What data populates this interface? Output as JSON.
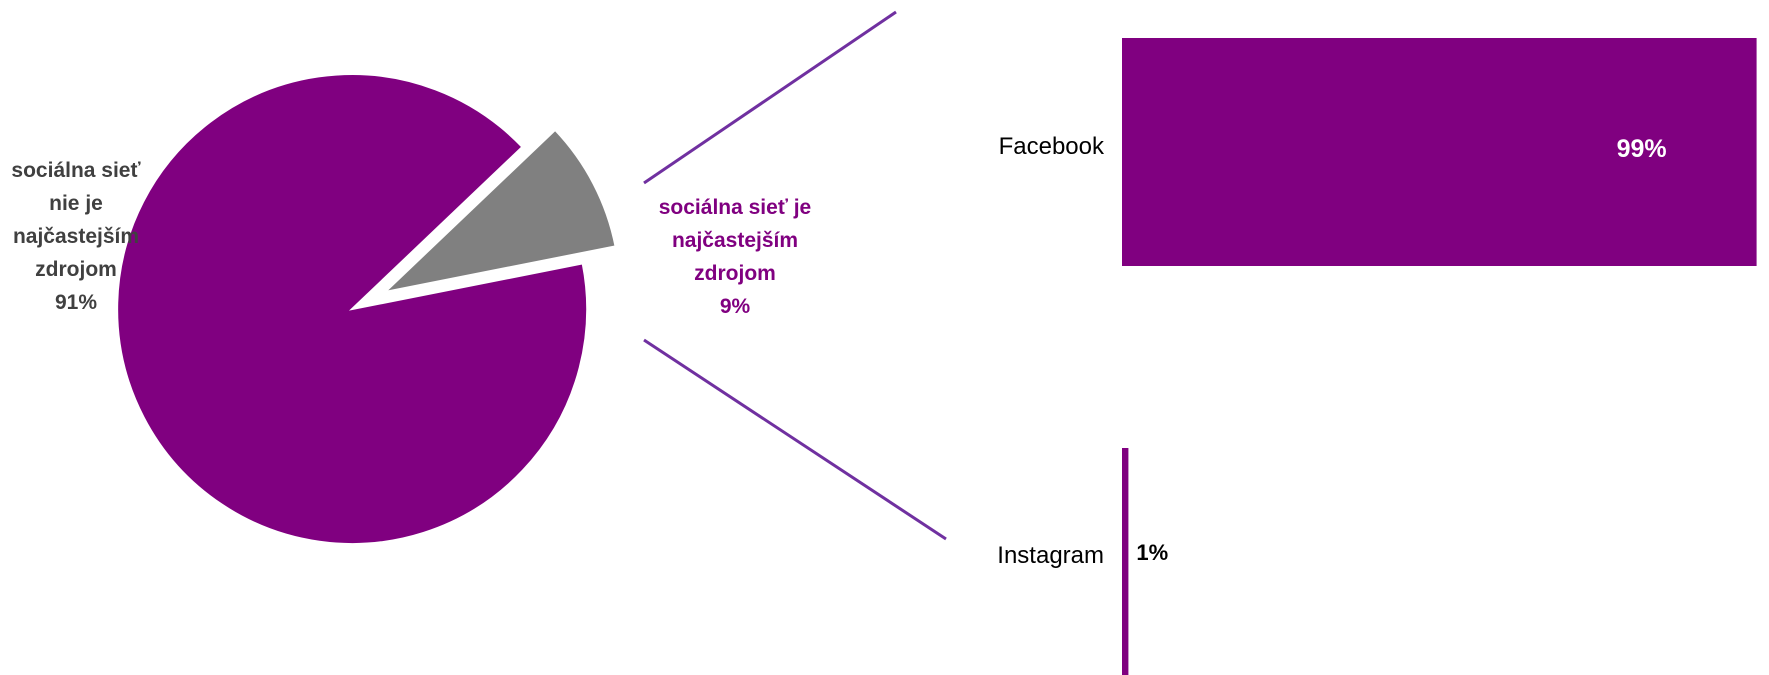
{
  "chart_data": [
    {
      "type": "pie",
      "title": "",
      "slices": [
        {
          "label_lines": [
            "sociálna sieť",
            "nie je",
            "najčastejším",
            "zdrojom",
            "91%"
          ],
          "value": 91,
          "color": "#808080",
          "exploded": false
        },
        {
          "label_lines": [
            "sociálna sieť je",
            "najčastejším",
            "zdrojom",
            "9%"
          ],
          "value": 9,
          "color": "#800080",
          "exploded": true
        }
      ]
    },
    {
      "type": "bar",
      "orientation": "horizontal",
      "title": "",
      "categories": [
        "Facebook",
        "Instagram"
      ],
      "values": [
        99,
        1
      ],
      "value_labels": [
        "99%",
        "1%"
      ],
      "color": "#800080",
      "xlim": [
        0,
        100
      ],
      "grid": false,
      "legend": "none"
    }
  ]
}
